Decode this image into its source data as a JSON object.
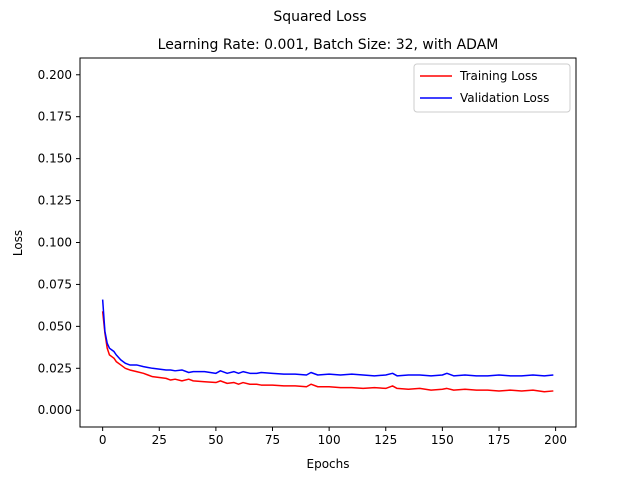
{
  "figure": {
    "suptitle": "Squared Loss",
    "title": "Learning Rate: 0.001, Batch Size: 32, with ADAM"
  },
  "chart_data": {
    "type": "line",
    "title": "Learning Rate: 0.001, Batch Size: 32, with ADAM",
    "xlabel": "Epochs",
    "ylabel": "Loss",
    "xlim": [
      -10,
      209
    ],
    "ylim": [
      -0.01,
      0.21
    ],
    "x_ticks": [
      0,
      25,
      50,
      75,
      100,
      125,
      150,
      175,
      200
    ],
    "x_tick_labels": [
      "0",
      "25",
      "50",
      "75",
      "100",
      "125",
      "150",
      "175",
      "200"
    ],
    "y_ticks": [
      0.0,
      0.025,
      0.05,
      0.075,
      0.1,
      0.125,
      0.15,
      0.175,
      0.2
    ],
    "y_tick_labels": [
      "0.000",
      "0.025",
      "0.050",
      "0.075",
      "0.100",
      "0.125",
      "0.150",
      "0.175",
      "0.200"
    ],
    "grid": false,
    "legend_position": "top-right",
    "series": [
      {
        "name": "Training Loss",
        "color": "#ff0000",
        "x": [
          0,
          1,
          2,
          3,
          4,
          5,
          6,
          8,
          10,
          12,
          15,
          18,
          20,
          22,
          25,
          28,
          30,
          32,
          35,
          38,
          40,
          45,
          50,
          52,
          55,
          58,
          60,
          62,
          65,
          68,
          70,
          75,
          80,
          85,
          90,
          92,
          95,
          100,
          105,
          110,
          115,
          120,
          125,
          128,
          130,
          135,
          140,
          145,
          150,
          152,
          155,
          160,
          165,
          170,
          175,
          180,
          185,
          190,
          195,
          199
        ],
        "y": [
          0.059,
          0.046,
          0.037,
          0.033,
          0.032,
          0.031,
          0.029,
          0.027,
          0.025,
          0.024,
          0.023,
          0.022,
          0.021,
          0.02,
          0.0195,
          0.019,
          0.018,
          0.0185,
          0.0175,
          0.0185,
          0.0175,
          0.017,
          0.0165,
          0.0175,
          0.016,
          0.0165,
          0.0155,
          0.0165,
          0.0155,
          0.0155,
          0.015,
          0.015,
          0.0145,
          0.0145,
          0.014,
          0.0155,
          0.014,
          0.014,
          0.0135,
          0.0135,
          0.013,
          0.0135,
          0.013,
          0.0145,
          0.013,
          0.0125,
          0.013,
          0.012,
          0.0125,
          0.013,
          0.012,
          0.0125,
          0.012,
          0.012,
          0.0115,
          0.012,
          0.0115,
          0.012,
          0.011,
          0.0115
        ]
      },
      {
        "name": "Validation Loss",
        "color": "#0000ff",
        "x": [
          0,
          1,
          2,
          3,
          4,
          5,
          6,
          8,
          10,
          12,
          15,
          18,
          20,
          22,
          25,
          28,
          30,
          32,
          35,
          38,
          40,
          45,
          50,
          52,
          55,
          58,
          60,
          62,
          65,
          68,
          70,
          75,
          80,
          85,
          90,
          92,
          95,
          100,
          105,
          110,
          115,
          120,
          125,
          128,
          130,
          135,
          140,
          145,
          150,
          152,
          155,
          160,
          165,
          170,
          175,
          180,
          185,
          190,
          195,
          199
        ],
        "y": [
          0.066,
          0.047,
          0.04,
          0.037,
          0.036,
          0.035,
          0.033,
          0.03,
          0.028,
          0.027,
          0.027,
          0.026,
          0.0255,
          0.025,
          0.0245,
          0.024,
          0.024,
          0.0235,
          0.024,
          0.0225,
          0.023,
          0.023,
          0.022,
          0.0235,
          0.022,
          0.023,
          0.022,
          0.023,
          0.022,
          0.022,
          0.0225,
          0.022,
          0.0215,
          0.0215,
          0.021,
          0.0225,
          0.021,
          0.0215,
          0.021,
          0.0215,
          0.021,
          0.0205,
          0.021,
          0.022,
          0.0205,
          0.021,
          0.021,
          0.0205,
          0.021,
          0.022,
          0.0205,
          0.021,
          0.0205,
          0.0205,
          0.021,
          0.0205,
          0.0205,
          0.021,
          0.0205,
          0.021
        ]
      }
    ]
  }
}
